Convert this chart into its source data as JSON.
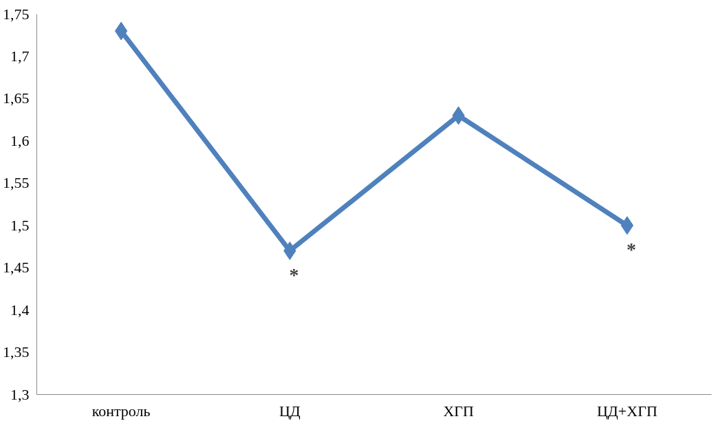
{
  "chart_data": {
    "type": "line",
    "categories": [
      "контроль",
      "ЦД",
      "ХГП",
      "ЦД+ХГП"
    ],
    "series": [
      {
        "color": "#4f81bd",
        "values": [
          1.73,
          1.47,
          1.63,
          1.5
        ]
      }
    ],
    "ylim": [
      1.3,
      1.75
    ],
    "yticks": [
      {
        "value": 1.3,
        "label": "1,3"
      },
      {
        "value": 1.35,
        "label": "1,35"
      },
      {
        "value": 1.4,
        "label": "1,4"
      },
      {
        "value": 1.45,
        "label": "1,45"
      },
      {
        "value": 1.5,
        "label": "1,5"
      },
      {
        "value": 1.55,
        "label": "1,55"
      },
      {
        "value": 1.6,
        "label": "1,6"
      },
      {
        "value": 1.65,
        "label": "1,65"
      },
      {
        "value": 1.7,
        "label": "1,7"
      },
      {
        "value": 1.75,
        "label": "1,75"
      }
    ],
    "annotations": [
      {
        "text": "*",
        "x": "ЦД",
        "y": 1.47
      },
      {
        "text": "*",
        "x": "ЦД+ХГП",
        "y": 1.5
      }
    ],
    "marker": "diamond",
    "line_style": "solid",
    "grid": false
  }
}
